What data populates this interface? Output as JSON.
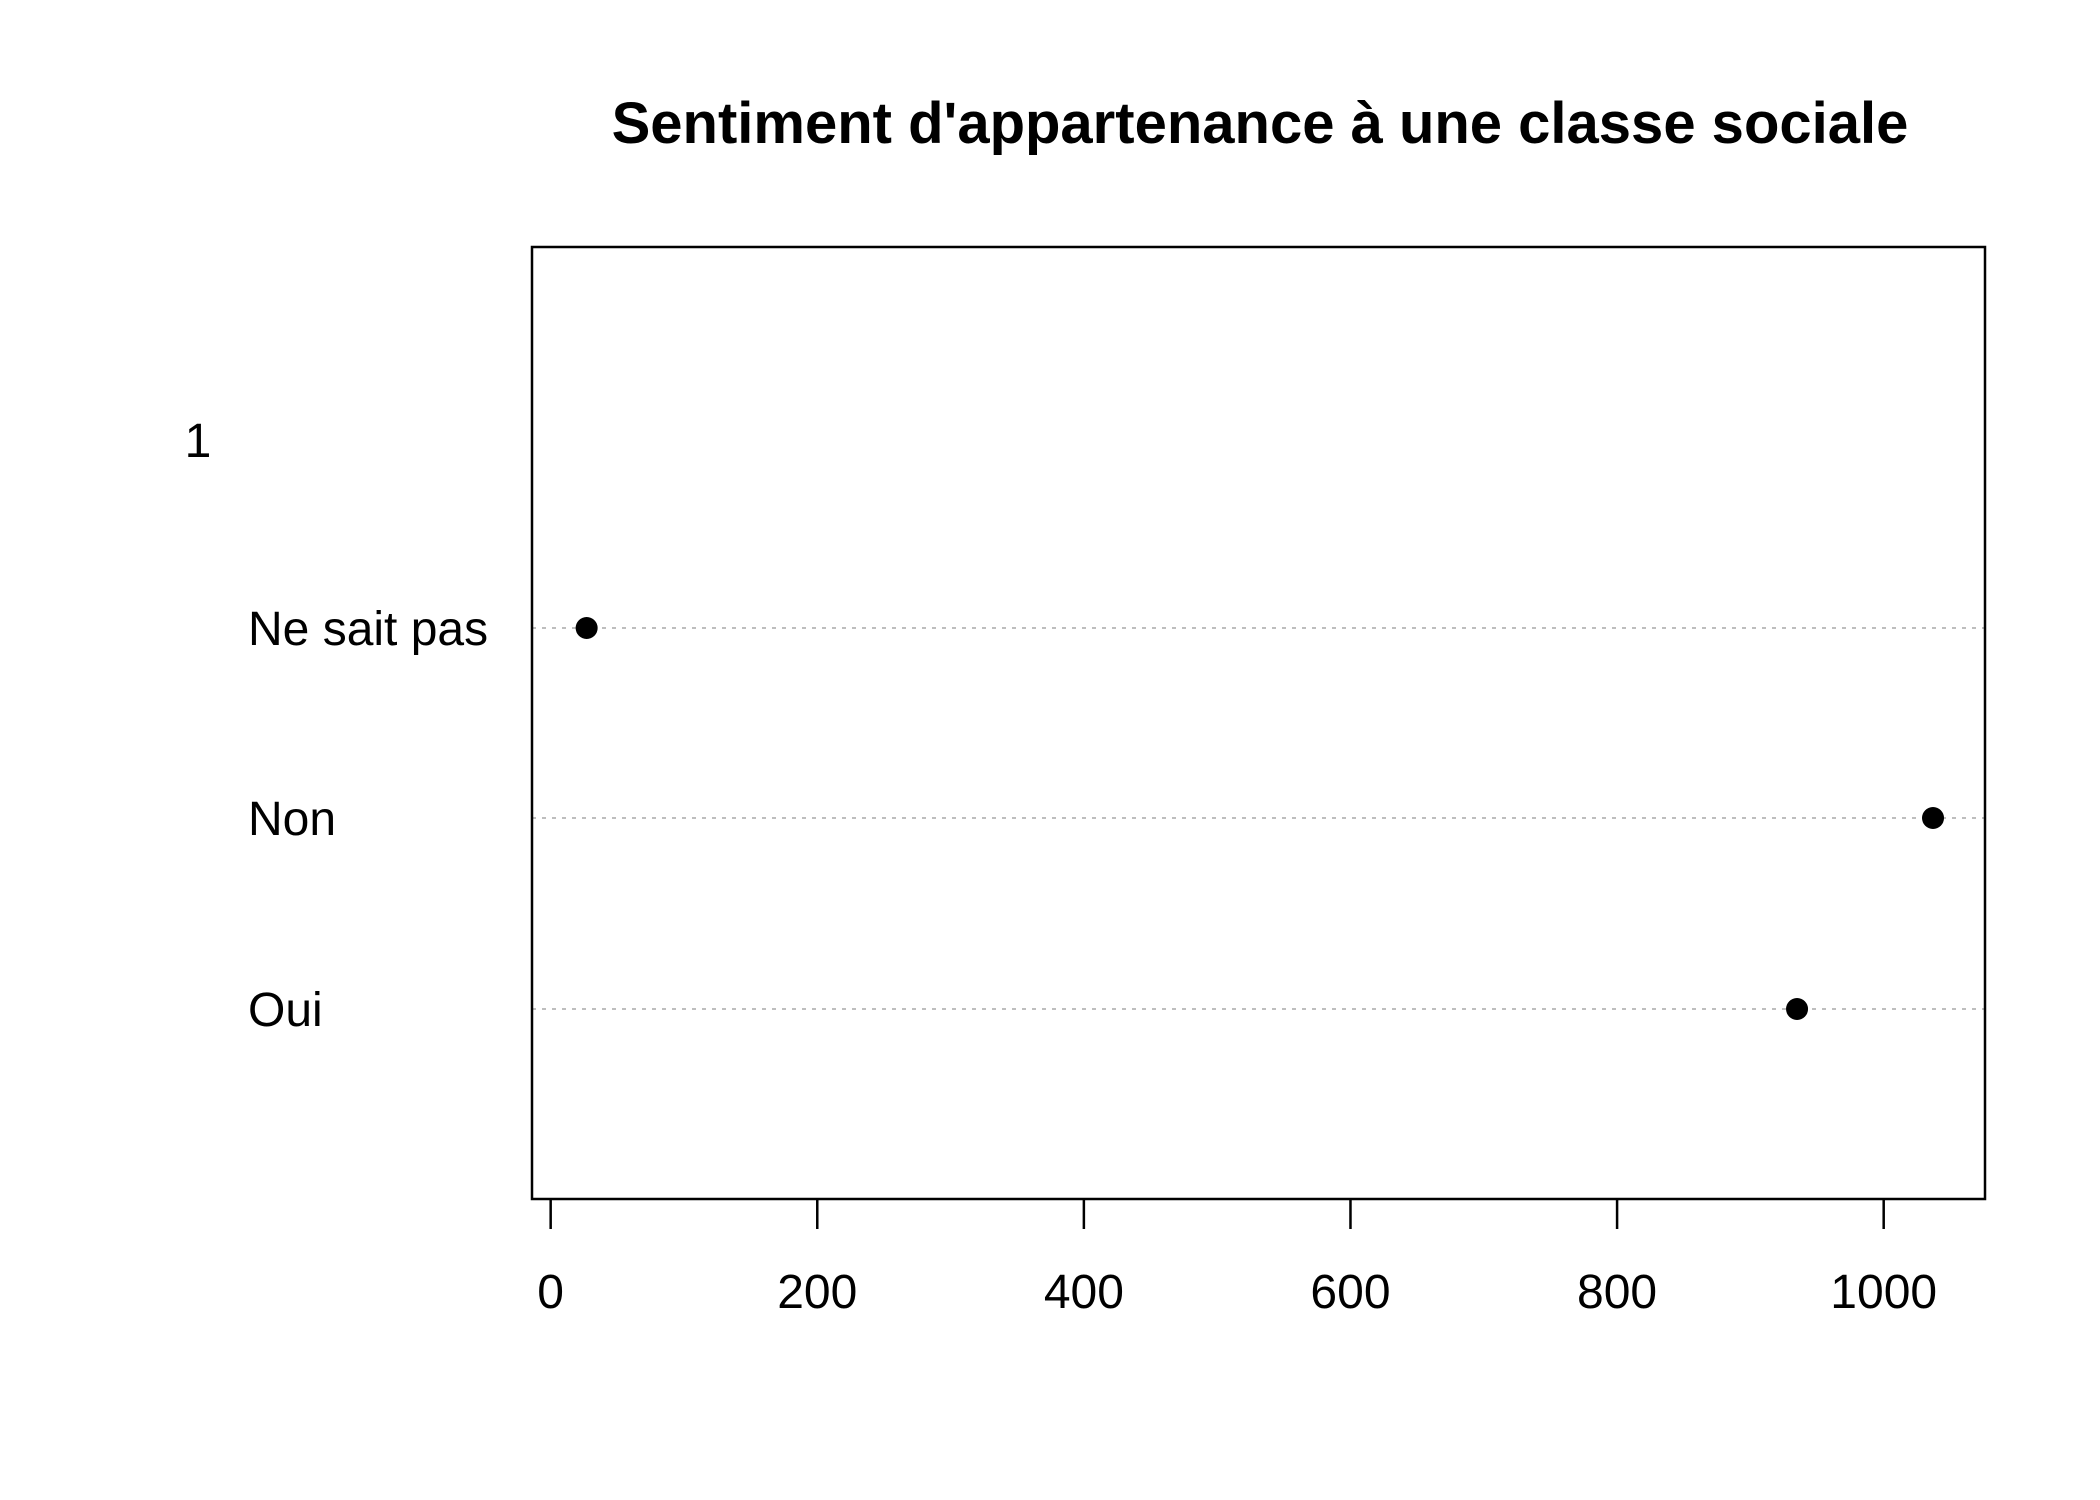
{
  "chart_data": {
    "type": "scatter",
    "title": "Sentiment d'appartenance à une classe sociale",
    "group_label": "1",
    "categories": [
      "Ne sait pas",
      "Non",
      "Oui"
    ],
    "values": [
      27,
      1037,
      935
    ],
    "xlabel": "",
    "ylabel": "",
    "xlim": [
      -14,
      1076
    ],
    "x_ticks": [
      0,
      200,
      400,
      600,
      800,
      1000
    ],
    "grid": false,
    "guide_lines": "dotted",
    "legend": "none",
    "colors": {
      "points": "#000000",
      "guides": "#bebebe",
      "frame": "#000000"
    }
  }
}
